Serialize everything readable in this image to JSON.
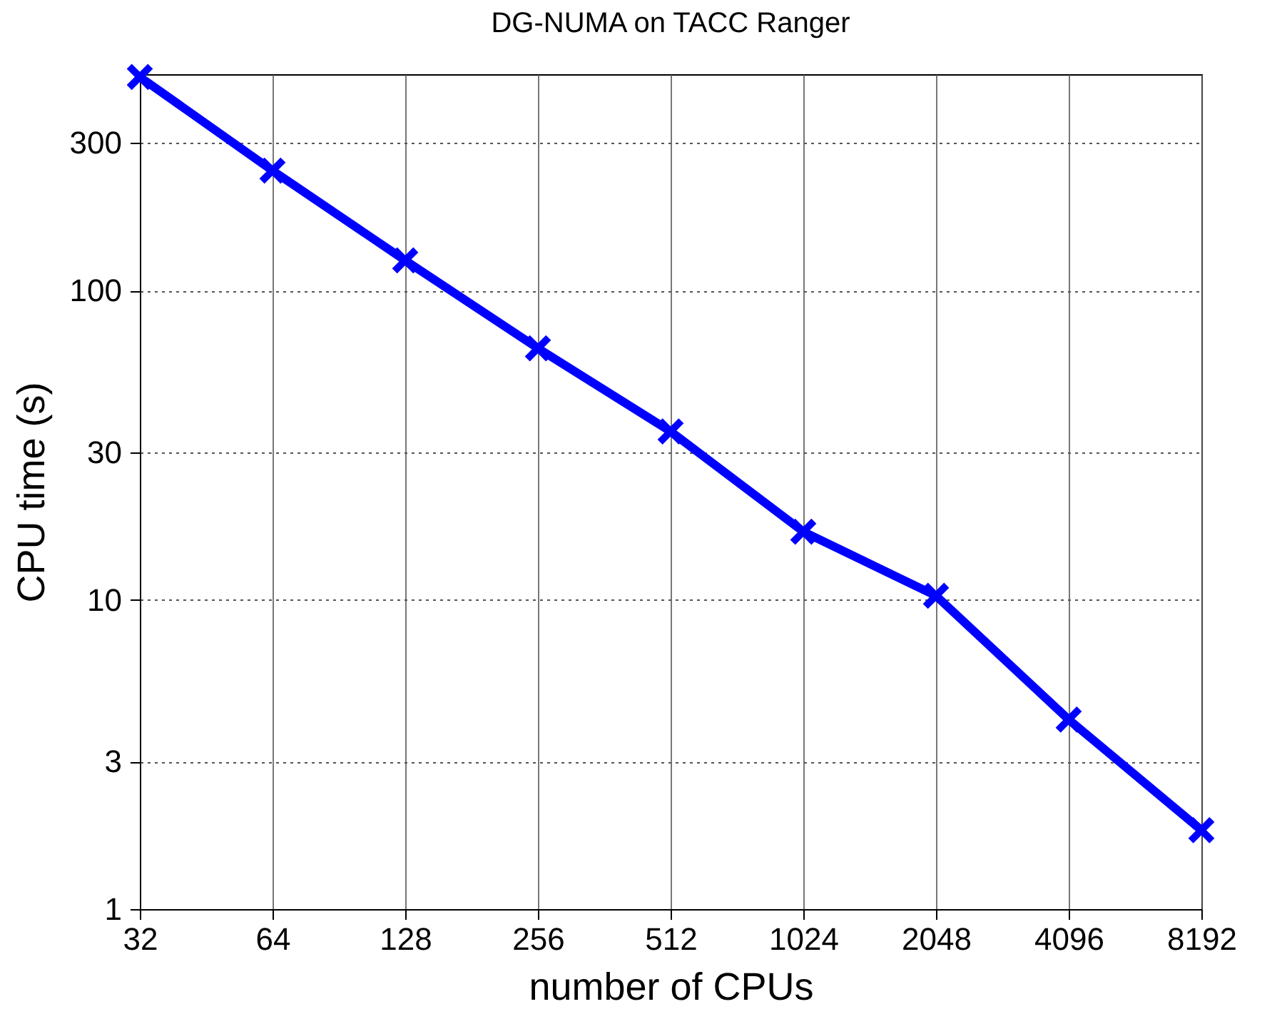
{
  "chart_data": {
    "type": "line",
    "title": "DG-NUMA on TACC Ranger",
    "xlabel": "number of CPUs",
    "ylabel": "CPU time (s)",
    "x": [
      32,
      64,
      128,
      256,
      512,
      1024,
      2048,
      4096,
      8192
    ],
    "series": [
      {
        "color": "#0000ff",
        "values": [
          490,
          244,
          125,
          65,
          35,
          16.6,
          10.3,
          4.1,
          1.8
        ]
      }
    ],
    "log": "xy",
    "xlim": [
      32,
      8192
    ],
    "xticks": [
      32,
      64,
      128,
      256,
      512,
      1024,
      2048,
      4096,
      8192
    ],
    "ylim": [
      1,
      500
    ],
    "yticks": [
      1,
      3,
      10,
      30,
      100,
      300
    ],
    "grid": true,
    "marker": "cross",
    "line_style": "solid"
  }
}
